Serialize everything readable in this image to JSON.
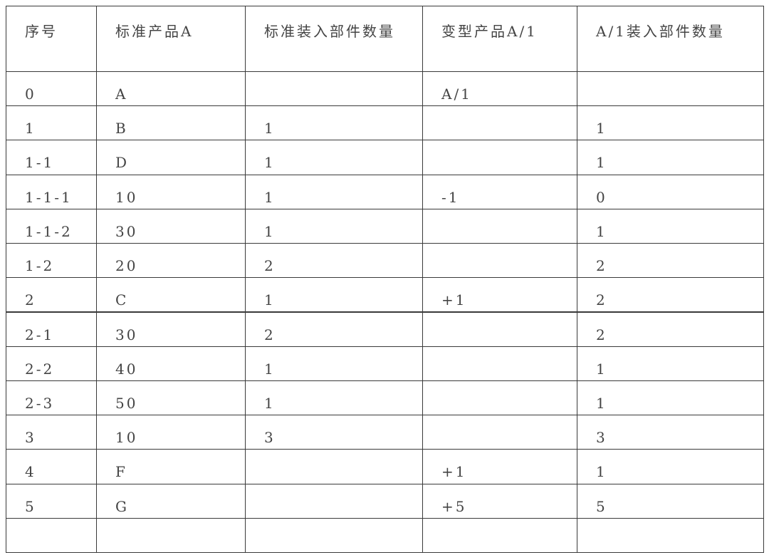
{
  "table": {
    "header": [
      "序号",
      "标准产品A",
      "标准装入部件数量",
      "变型产品A/1",
      "A/1装入部件数量"
    ],
    "rows": [
      [
        "0",
        "A",
        null,
        "A/1",
        null
      ],
      [
        "1",
        "B",
        "1",
        null,
        "1"
      ],
      [
        "1-1",
        "D",
        "1",
        null,
        "1"
      ],
      [
        "1-1-1",
        "10",
        "1",
        "-1",
        "0"
      ],
      [
        "1-1-2",
        "30",
        "1",
        null,
        "1"
      ],
      [
        "1-2",
        "20",
        "2",
        null,
        "2"
      ],
      [
        "2",
        "C",
        "1",
        "+1",
        "2"
      ],
      [
        "2-1",
        "30",
        "2",
        null,
        "2"
      ],
      [
        "2-2",
        "40",
        "1",
        null,
        "1"
      ],
      [
        "2-3",
        "50",
        "1",
        null,
        "1"
      ],
      [
        "3",
        "10",
        "3",
        null,
        "3"
      ],
      [
        "4",
        "F",
        null,
        "+1",
        "1"
      ],
      [
        "5",
        "G",
        null,
        "+5",
        "5"
      ],
      [
        null,
        null,
        null,
        null,
        null
      ]
    ]
  }
}
